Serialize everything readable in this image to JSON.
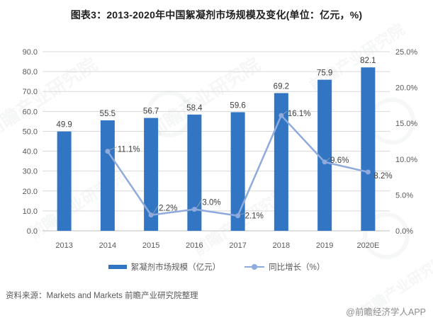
{
  "chart_data": {
    "type": "combo-bar-line",
    "title": "图表3：2013-2020年中国絮凝剂市场规模及变化(单位：亿元，%)",
    "categories": [
      "2013",
      "2014",
      "2015",
      "2016",
      "2017",
      "2018",
      "2019",
      "2020E"
    ],
    "series": [
      {
        "name": "絮凝剂市场规模（亿元）",
        "type": "bar",
        "axis": "left",
        "values": [
          49.9,
          55.5,
          56.7,
          58.4,
          59.6,
          69.2,
          75.9,
          82.1
        ],
        "color": "#3276c3"
      },
      {
        "name": "同比增长（%）",
        "type": "line",
        "axis": "right",
        "values": [
          null,
          11.1,
          2.2,
          3.0,
          2.1,
          16.1,
          9.6,
          8.2
        ],
        "color": "#8faadc",
        "label_suffix": "%"
      }
    ],
    "left_axis": {
      "min": 0,
      "max": 90,
      "step": 10,
      "tick_suffix": ""
    },
    "right_axis": {
      "min": 0,
      "max": 25,
      "step": 5,
      "tick_suffix": "%"
    },
    "grid": true,
    "legend_position": "bottom",
    "gridline_color": "#d9d9d9",
    "axis_line_color": "#bfbfbf"
  },
  "source": "资料来源：Markets and Markets 前瞻产业研究院整理",
  "credit": "@前瞻经济学人APP",
  "watermark": {
    "text": "前瞻产业研究院",
    "sub_text": "中国产业咨询领导者"
  }
}
